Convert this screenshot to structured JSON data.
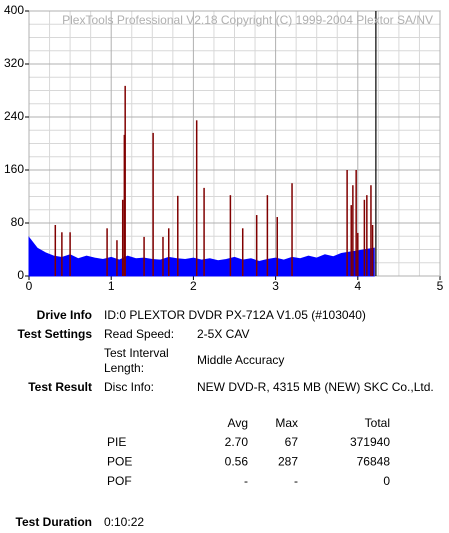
{
  "chart_data": {
    "type": "area",
    "title": "PlexTools Professional V2.18 Copyright (C) 1999-2004 Plextor SA/NV",
    "xlim": [
      0,
      5
    ],
    "xticks": [
      0,
      1,
      2,
      3,
      4,
      5
    ],
    "ylim": [
      0,
      400
    ],
    "yticks": [
      0,
      80,
      160,
      240,
      320,
      400
    ],
    "grid": true,
    "marker_x": 4.22,
    "marker_color": "#000000",
    "series": [
      {
        "name": "PIE",
        "color": "#0000ff",
        "x": [
          0,
          0.1,
          0.2,
          0.3,
          0.4,
          0.5,
          0.6,
          0.7,
          0.8,
          0.9,
          1,
          1.1,
          1.2,
          1.3,
          1.4,
          1.5,
          1.6,
          1.7,
          1.8,
          1.9,
          2,
          2.1,
          2.2,
          2.3,
          2.4,
          2.5,
          2.6,
          2.7,
          2.8,
          2.9,
          3,
          3.1,
          3.2,
          3.3,
          3.4,
          3.5,
          3.6,
          3.7,
          3.8,
          3.9,
          4,
          4.1,
          4.2
        ],
        "values": [
          58,
          42,
          35,
          30,
          28,
          32,
          26,
          30,
          27,
          25,
          28,
          24,
          30,
          26,
          27,
          25,
          24,
          28,
          26,
          25,
          27,
          24,
          26,
          23,
          25,
          28,
          24,
          26,
          22,
          25,
          27,
          24,
          28,
          26,
          30,
          27,
          32,
          29,
          34,
          36,
          38,
          40,
          42
        ]
      },
      {
        "name": "POE",
        "color": "#800000",
        "x": [
          0.32,
          0.4,
          0.5,
          0.95,
          1.07,
          1.14,
          1.16,
          1.17,
          1.4,
          1.51,
          1.63,
          1.7,
          1.81,
          2.04,
          2.13,
          2.45,
          2.6,
          2.77,
          2.9,
          3.02,
          3.2,
          3.87,
          3.92,
          3.94,
          3.98,
          4.0,
          4.08,
          4.11,
          4.16,
          4.18
        ],
        "values": [
          77,
          66,
          66,
          72,
          54,
          115,
          213,
          287,
          59,
          216,
          59,
          72,
          121,
          235,
          133,
          122,
          72,
          92,
          122,
          89,
          140,
          160,
          107,
          137,
          160,
          65,
          115,
          122,
          137,
          77
        ]
      }
    ]
  },
  "report": {
    "drive_info": {
      "label": "Drive Info",
      "value": "ID:0 PLEXTOR DVDR PX-712A V1.05 (#103040)"
    },
    "test_settings": {
      "label": "Test Settings",
      "read_speed": {
        "label": "Read Speed:",
        "value": "2-5X CAV"
      },
      "interval": {
        "label": "Test Interval Length:",
        "value": "Middle Accuracy"
      }
    },
    "test_result": {
      "label": "Test Result",
      "disc_info": {
        "label": "Disc Info:",
        "value": "NEW DVD-R, 4315 MB (NEW) SKC Co.,Ltd."
      }
    },
    "table": {
      "header": [
        "Avg",
        "Max",
        "Total"
      ],
      "rows": [
        [
          "PIE",
          "2.70",
          "67",
          "371940"
        ],
        [
          "POE",
          "0.56",
          "287",
          "76848"
        ],
        [
          "POF",
          "-",
          "-",
          "0"
        ]
      ]
    },
    "test_duration": {
      "label": "Test Duration",
      "value": "0:10:22"
    }
  }
}
